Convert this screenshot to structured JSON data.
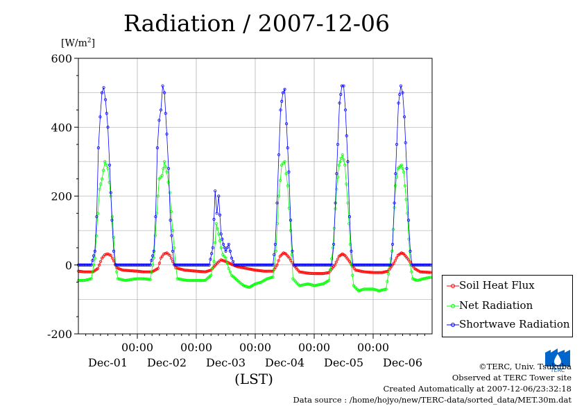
{
  "chart_data": {
    "type": "line",
    "title": "Radiation / 2007-12-06",
    "ylabel": "[W/m",
    "ylabel_sup": "2",
    "ylabel_tail": "]",
    "xlabel": "(LST)",
    "ylim": [
      -200,
      600
    ],
    "yticks": [
      "600",
      "400",
      "200",
      "0",
      "-200"
    ],
    "ytick_values": [
      600,
      400,
      200,
      0,
      -200
    ],
    "x_range_days": [
      0,
      6
    ],
    "x_tick_days": [
      1,
      2,
      3,
      4,
      5
    ],
    "x_tick_time": "00:00",
    "day_labels": [
      "Dec-01",
      "Dec-02",
      "Dec-03",
      "Dec-04",
      "Dec-05",
      "Dec-06"
    ],
    "day_label_positions": [
      0.5,
      1.5,
      2.5,
      3.5,
      4.5,
      5.5
    ],
    "grid": true,
    "legend_position": "right",
    "series": [
      {
        "name": "Soil Heat Flux",
        "color": "#ff0000",
        "points": [
          [
            0.0,
            -18
          ],
          [
            0.1,
            -20
          ],
          [
            0.25,
            -20
          ],
          [
            0.33,
            -10
          ],
          [
            0.4,
            20
          ],
          [
            0.45,
            30
          ],
          [
            0.5,
            32
          ],
          [
            0.55,
            28
          ],
          [
            0.6,
            12
          ],
          [
            0.65,
            -8
          ],
          [
            0.75,
            -15
          ],
          [
            0.9,
            -17
          ],
          [
            1.0,
            -18
          ],
          [
            1.1,
            -20
          ],
          [
            1.25,
            -20
          ],
          [
            1.35,
            -10
          ],
          [
            1.4,
            20
          ],
          [
            1.45,
            32
          ],
          [
            1.5,
            35
          ],
          [
            1.55,
            28
          ],
          [
            1.6,
            10
          ],
          [
            1.65,
            -8
          ],
          [
            1.8,
            -15
          ],
          [
            2.0,
            -18
          ],
          [
            2.15,
            -20
          ],
          [
            2.25,
            -15
          ],
          [
            2.35,
            5
          ],
          [
            2.42,
            15
          ],
          [
            2.5,
            10
          ],
          [
            2.6,
            2
          ],
          [
            2.7,
            -5
          ],
          [
            2.85,
            -10
          ],
          [
            3.0,
            -15
          ],
          [
            3.15,
            -18
          ],
          [
            3.3,
            -18
          ],
          [
            3.37,
            0
          ],
          [
            3.42,
            25
          ],
          [
            3.48,
            35
          ],
          [
            3.52,
            32
          ],
          [
            3.58,
            20
          ],
          [
            3.65,
            0
          ],
          [
            3.75,
            -20
          ],
          [
            3.9,
            -24
          ],
          [
            4.0,
            -25
          ],
          [
            4.15,
            -25
          ],
          [
            4.25,
            -22
          ],
          [
            4.35,
            0
          ],
          [
            4.42,
            25
          ],
          [
            4.48,
            32
          ],
          [
            4.52,
            28
          ],
          [
            4.6,
            10
          ],
          [
            4.7,
            -15
          ],
          [
            4.85,
            -20
          ],
          [
            5.0,
            -22
          ],
          [
            5.15,
            -22
          ],
          [
            5.25,
            -18
          ],
          [
            5.35,
            5
          ],
          [
            5.42,
            28
          ],
          [
            5.48,
            35
          ],
          [
            5.52,
            32
          ],
          [
            5.6,
            15
          ],
          [
            5.7,
            -10
          ],
          [
            5.8,
            -20
          ],
          [
            6.0,
            -22
          ]
        ]
      },
      {
        "name": "Net Radiation",
        "color": "#00ff00",
        "points": [
          [
            0.0,
            -45
          ],
          [
            0.1,
            -45
          ],
          [
            0.22,
            -40
          ],
          [
            0.28,
            20
          ],
          [
            0.33,
            150
          ],
          [
            0.36,
            220
          ],
          [
            0.4,
            250
          ],
          [
            0.45,
            300
          ],
          [
            0.5,
            280
          ],
          [
            0.55,
            200
          ],
          [
            0.6,
            80
          ],
          [
            0.63,
            0
          ],
          [
            0.67,
            -40
          ],
          [
            0.8,
            -45
          ],
          [
            0.9,
            -42
          ],
          [
            1.0,
            -40
          ],
          [
            1.1,
            -40
          ],
          [
            1.22,
            -42
          ],
          [
            1.28,
            20
          ],
          [
            1.33,
            150
          ],
          [
            1.37,
            250
          ],
          [
            1.42,
            260
          ],
          [
            1.46,
            300
          ],
          [
            1.5,
            270
          ],
          [
            1.55,
            210
          ],
          [
            1.6,
            100
          ],
          [
            1.65,
            0
          ],
          [
            1.68,
            -40
          ],
          [
            1.85,
            -45
          ],
          [
            2.0,
            -45
          ],
          [
            2.15,
            -45
          ],
          [
            2.25,
            -30
          ],
          [
            2.3,
            10
          ],
          [
            2.34,
            120
          ],
          [
            2.38,
            90
          ],
          [
            2.42,
            50
          ],
          [
            2.45,
            30
          ],
          [
            2.5,
            20
          ],
          [
            2.55,
            -10
          ],
          [
            2.6,
            -30
          ],
          [
            2.7,
            -45
          ],
          [
            2.8,
            -60
          ],
          [
            2.9,
            -65
          ],
          [
            3.0,
            -55
          ],
          [
            3.1,
            -50
          ],
          [
            3.2,
            -40
          ],
          [
            3.3,
            -35
          ],
          [
            3.35,
            40
          ],
          [
            3.4,
            200
          ],
          [
            3.45,
            290
          ],
          [
            3.5,
            300
          ],
          [
            3.55,
            230
          ],
          [
            3.6,
            100
          ],
          [
            3.64,
            -40
          ],
          [
            3.75,
            -60
          ],
          [
            3.9,
            -55
          ],
          [
            4.0,
            -60
          ],
          [
            4.15,
            -55
          ],
          [
            4.25,
            -45
          ],
          [
            4.32,
            50
          ],
          [
            4.38,
            220
          ],
          [
            4.42,
            290
          ],
          [
            4.48,
            320
          ],
          [
            4.52,
            290
          ],
          [
            4.57,
            180
          ],
          [
            4.63,
            0
          ],
          [
            4.67,
            -60
          ],
          [
            4.75,
            -75
          ],
          [
            4.85,
            -70
          ],
          [
            5.0,
            -70
          ],
          [
            5.1,
            -75
          ],
          [
            5.22,
            -70
          ],
          [
            5.32,
            40
          ],
          [
            5.38,
            230
          ],
          [
            5.42,
            280
          ],
          [
            5.48,
            290
          ],
          [
            5.52,
            270
          ],
          [
            5.58,
            150
          ],
          [
            5.63,
            0
          ],
          [
            5.67,
            -40
          ],
          [
            5.75,
            -45
          ],
          [
            5.85,
            -40
          ],
          [
            6.0,
            -35
          ]
        ]
      },
      {
        "name": "Shortwave Radiation",
        "color": "#0000ff",
        "points": [
          [
            0.0,
            0
          ],
          [
            0.22,
            0
          ],
          [
            0.28,
            40
          ],
          [
            0.31,
            140
          ],
          [
            0.34,
            340
          ],
          [
            0.37,
            430
          ],
          [
            0.4,
            500
          ],
          [
            0.43,
            515
          ],
          [
            0.46,
            480
          ],
          [
            0.5,
            400
          ],
          [
            0.53,
            290
          ],
          [
            0.57,
            130
          ],
          [
            0.6,
            40
          ],
          [
            0.63,
            0
          ],
          [
            1.0,
            0
          ],
          [
            1.22,
            0
          ],
          [
            1.28,
            40
          ],
          [
            1.31,
            140
          ],
          [
            1.34,
            340
          ],
          [
            1.37,
            420
          ],
          [
            1.4,
            450
          ],
          [
            1.43,
            520
          ],
          [
            1.46,
            500
          ],
          [
            1.5,
            380
          ],
          [
            1.53,
            280
          ],
          [
            1.56,
            130
          ],
          [
            1.6,
            40
          ],
          [
            1.63,
            0
          ],
          [
            2.0,
            0
          ],
          [
            2.22,
            0
          ],
          [
            2.28,
            50
          ],
          [
            2.32,
            215
          ],
          [
            2.35,
            150
          ],
          [
            2.38,
            200
          ],
          [
            2.42,
            90
          ],
          [
            2.46,
            60
          ],
          [
            2.5,
            40
          ],
          [
            2.55,
            60
          ],
          [
            2.6,
            20
          ],
          [
            2.65,
            0
          ],
          [
            3.0,
            0
          ],
          [
            3.3,
            0
          ],
          [
            3.34,
            60
          ],
          [
            3.37,
            180
          ],
          [
            3.4,
            320
          ],
          [
            3.43,
            450
          ],
          [
            3.47,
            500
          ],
          [
            3.5,
            510
          ],
          [
            3.53,
            410
          ],
          [
            3.57,
            270
          ],
          [
            3.6,
            130
          ],
          [
            3.63,
            40
          ],
          [
            3.66,
            0
          ],
          [
            4.0,
            0
          ],
          [
            4.3,
            0
          ],
          [
            4.33,
            60
          ],
          [
            4.36,
            180
          ],
          [
            4.4,
            350
          ],
          [
            4.43,
            470
          ],
          [
            4.47,
            520
          ],
          [
            4.5,
            520
          ],
          [
            4.53,
            450
          ],
          [
            4.57,
            300
          ],
          [
            4.6,
            140
          ],
          [
            4.63,
            40
          ],
          [
            4.66,
            0
          ],
          [
            5.0,
            0
          ],
          [
            5.3,
            0
          ],
          [
            5.33,
            60
          ],
          [
            5.36,
            180
          ],
          [
            5.4,
            350
          ],
          [
            5.43,
            470
          ],
          [
            5.47,
            520
          ],
          [
            5.5,
            500
          ],
          [
            5.53,
            430
          ],
          [
            5.57,
            280
          ],
          [
            5.6,
            130
          ],
          [
            5.63,
            40
          ],
          [
            5.66,
            0
          ],
          [
            6.0,
            0
          ]
        ]
      }
    ]
  },
  "credits": {
    "copyright": "©TERC, Univ. Tsukuba",
    "observed": "Observed at TERC Tower site",
    "created": "Created Automatically at 2007-12-06/23:32:18",
    "source": "Data source : /home/hojyo/new/TERC-data/sorted_data/MET.30m.dat"
  },
  "logo": {
    "text": "TERC",
    "color": "#0066cc"
  }
}
